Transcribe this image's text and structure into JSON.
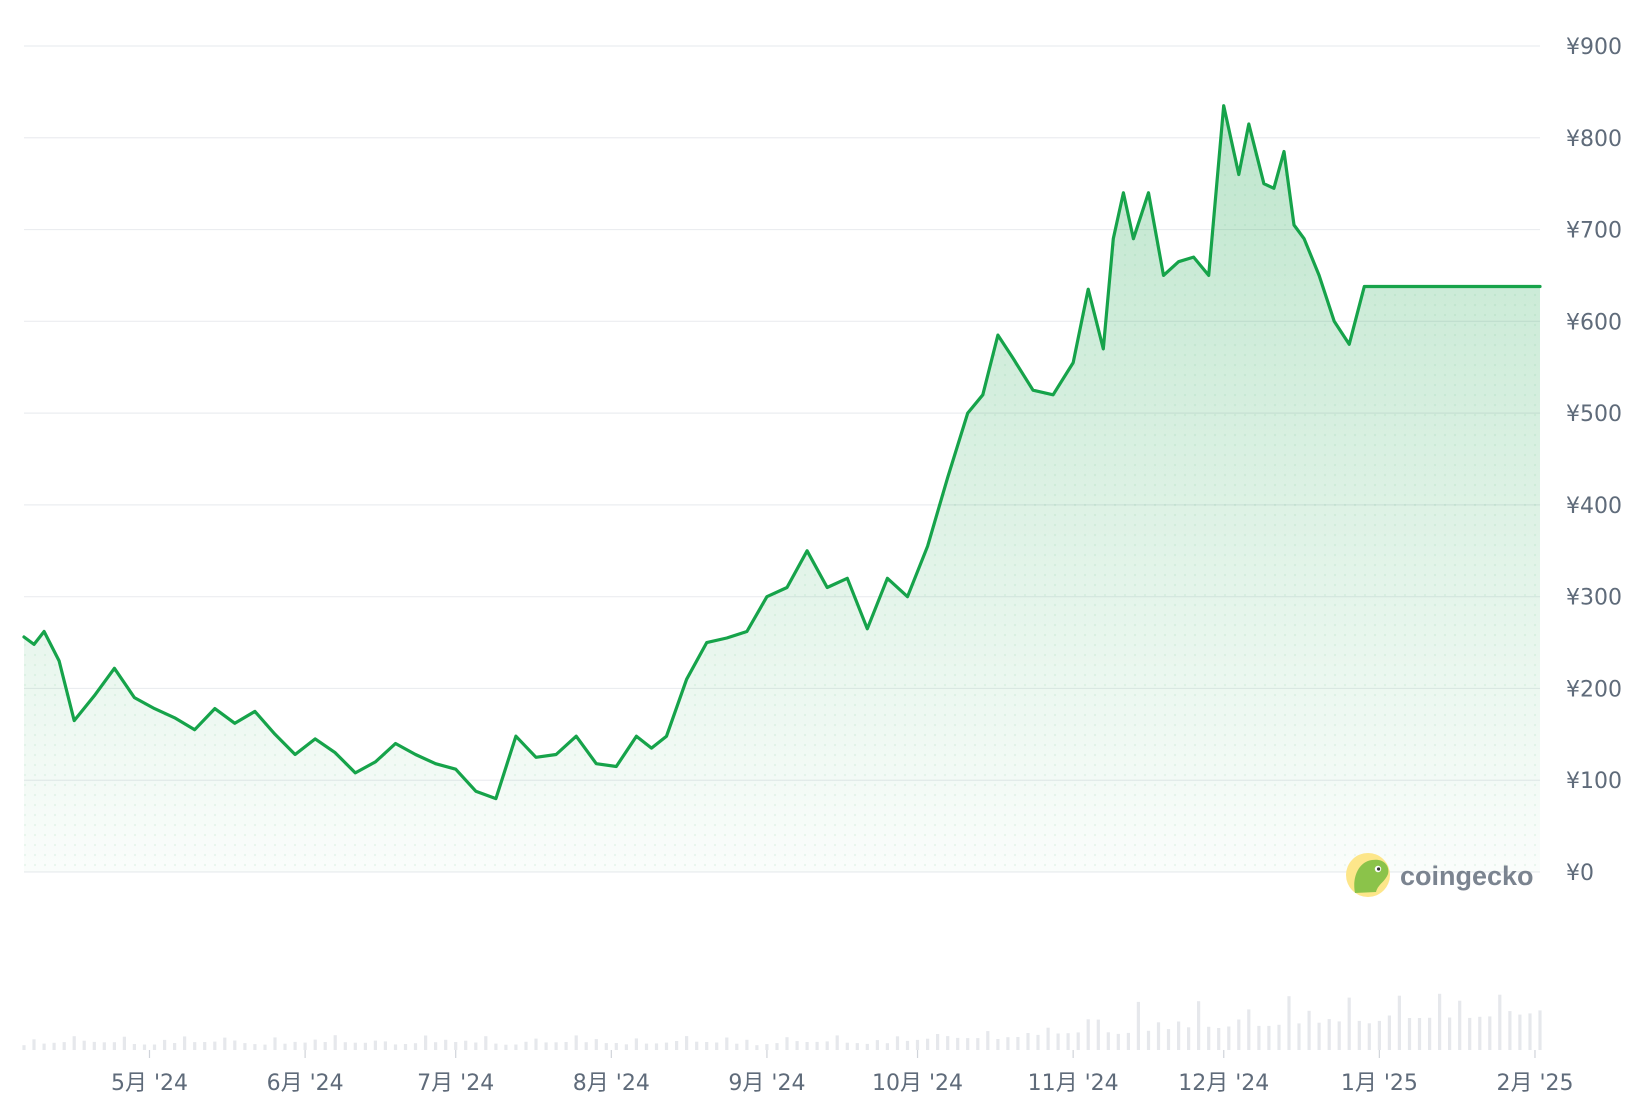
{
  "chart_data": {
    "type": "line",
    "currency_symbol": "¥",
    "y_ticks": [
      "¥900",
      "¥800",
      "¥700",
      "¥600",
      "¥500",
      "¥400",
      "¥300",
      "¥200",
      "¥100",
      "¥0"
    ],
    "ylim": [
      0,
      900
    ],
    "x_ticks": [
      "5月 '24",
      "6月 '24",
      "7月 '24",
      "8月 '24",
      "9月 '24",
      "10月 '24",
      "11月 '24",
      "12月 '24",
      "1月 '25",
      "2月 '25"
    ],
    "x_range": [
      "2024-04-06",
      "2025-02-02"
    ],
    "grid": true,
    "line_color": "#16a34a",
    "fill_color": "#16a34a",
    "volume_color": "#e6e8ec",
    "brand": "coingecko",
    "price_series": {
      "x_dates": [
        "2024-04-06",
        "2024-04-08",
        "2024-04-10",
        "2024-04-13",
        "2024-04-16",
        "2024-04-20",
        "2024-04-24",
        "2024-04-28",
        "2024-05-02",
        "2024-05-06",
        "2024-05-10",
        "2024-05-14",
        "2024-05-18",
        "2024-05-22",
        "2024-05-26",
        "2024-05-30",
        "2024-06-03",
        "2024-06-07",
        "2024-06-11",
        "2024-06-15",
        "2024-06-19",
        "2024-06-23",
        "2024-06-27",
        "2024-07-01",
        "2024-07-05",
        "2024-07-09",
        "2024-07-13",
        "2024-07-17",
        "2024-07-21",
        "2024-07-25",
        "2024-07-29",
        "2024-08-02",
        "2024-08-06",
        "2024-08-09",
        "2024-08-12",
        "2024-08-16",
        "2024-08-20",
        "2024-08-24",
        "2024-08-28",
        "2024-09-01",
        "2024-09-05",
        "2024-09-09",
        "2024-09-13",
        "2024-09-17",
        "2024-09-21",
        "2024-09-25",
        "2024-09-29",
        "2024-10-03",
        "2024-10-07",
        "2024-10-11",
        "2024-10-14",
        "2024-10-17",
        "2024-10-20",
        "2024-10-24",
        "2024-10-28",
        "2024-11-01",
        "2024-11-04",
        "2024-11-07",
        "2024-11-09",
        "2024-11-11",
        "2024-11-13",
        "2024-11-16",
        "2024-11-19",
        "2024-11-22",
        "2024-11-25",
        "2024-11-28",
        "2024-12-01",
        "2024-12-04",
        "2024-12-06",
        "2024-12-09",
        "2024-12-11",
        "2024-12-13",
        "2024-12-15",
        "2024-12-17",
        "2024-12-20",
        "2024-12-23",
        "2024-12-26",
        "2024-12-29",
        "2025-01-01",
        "2025-01-04",
        "2025-01-07",
        "2025-01-09",
        "2025-01-11",
        "2025-01-14",
        "2025-01-17",
        "2025-01-20",
        "2025-01-23",
        "2025-01-25",
        "2025-01-27",
        "2025-01-29",
        "2025-01-31",
        "2025-02-02"
      ],
      "values": [
        256,
        248,
        262,
        230,
        165,
        192,
        222,
        190,
        178,
        168,
        155,
        178,
        162,
        175,
        150,
        128,
        145,
        130,
        108,
        120,
        140,
        128,
        118,
        112,
        88,
        80,
        148,
        125,
        128,
        148,
        118,
        115,
        148,
        135,
        148,
        210,
        250,
        255,
        262,
        300,
        310,
        350,
        310,
        320,
        265,
        320,
        300,
        355,
        430,
        500,
        520,
        585,
        560,
        525,
        520,
        555,
        635,
        570,
        690,
        740,
        690,
        740,
        650,
        665,
        670,
        650,
        835,
        760,
        815,
        750,
        745,
        785,
        705,
        690,
        650,
        600,
        575,
        638,
        638,
        638,
        638,
        638,
        638,
        638,
        638,
        638,
        638,
        638,
        638,
        638,
        638,
        638
      ]
    }
  }
}
